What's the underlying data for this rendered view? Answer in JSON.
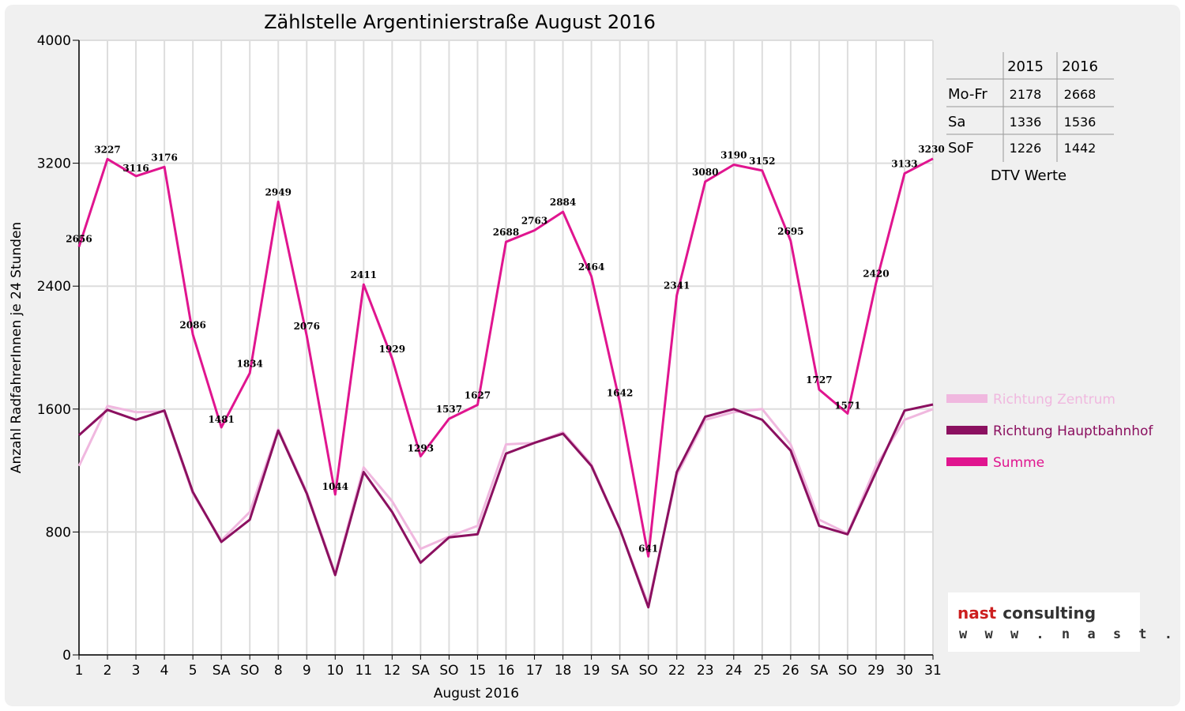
{
  "colors": {
    "zentrum": "#f0b8df",
    "hauptbahnhof": "#8b1060",
    "summe": "#e0158f",
    "weekend_label": "#ff0000",
    "grid": "#dddddd",
    "frame_bg": "#f0f0f0"
  },
  "chart_data": {
    "type": "line",
    "title": "Zählstelle Argentinierstraße August 2016",
    "xlabel": "August 2016",
    "ylabel": "Anzahl RadfahrerInnen je 24 Stunden",
    "ylim": [
      0,
      4000
    ],
    "yticks": [
      "0",
      "800",
      "1600",
      "2400",
      "3200",
      "4000"
    ],
    "grid": true,
    "legend_position": "right",
    "categories": [
      "1",
      "2",
      "3",
      "4",
      "5",
      "SA",
      "SO",
      "8",
      "9",
      "10",
      "11",
      "12",
      "SA",
      "SO",
      "15",
      "16",
      "17",
      "18",
      "19",
      "SA",
      "SO",
      "22",
      "23",
      "24",
      "25",
      "26",
      "SA",
      "SO",
      "29",
      "30",
      "31"
    ],
    "red_categories": [
      6,
      13,
      14,
      20,
      27
    ],
    "series": [
      {
        "name": "Richtung Zentrum",
        "color_key": "zentrum",
        "values": [
          1230,
          1620,
          1580,
          1585,
          1050,
          745,
          930,
          1470,
          1060,
          530,
          1220,
          1000,
          690,
          770,
          840,
          1370,
          1380,
          1450,
          1240,
          820,
          330,
          1170,
          1530,
          1580,
          1600,
          1370,
          880,
          790,
          1230,
          1530,
          1600
        ]
      },
      {
        "name": "Richtung Hauptbahnhof",
        "color_key": "hauptbahnhof",
        "values": [
          1430,
          1595,
          1530,
          1590,
          1060,
          735,
          880,
          1460,
          1050,
          520,
          1190,
          930,
          600,
          765,
          785,
          1310,
          1380,
          1440,
          1230,
          820,
          310,
          1190,
          1550,
          1600,
          1530,
          1330,
          840,
          785,
          1190,
          1590,
          1630
        ]
      },
      {
        "name": "Summe",
        "color_key": "summe",
        "values": [
          2656,
          3227,
          3116,
          3176,
          2086,
          1481,
          1834,
          2949,
          2076,
          1044,
          2411,
          1929,
          1293,
          1537,
          1627,
          2688,
          2763,
          2884,
          2464,
          1642,
          641,
          2341,
          3080,
          3190,
          3152,
          2695,
          1727,
          1571,
          2420,
          3133,
          3230
        ]
      }
    ],
    "data_labels": [
      "2656",
      "3227",
      "3116",
      "3176",
      "2086",
      "1481",
      "1834",
      "2949",
      "2076",
      "1044",
      "2411",
      "1929",
      "1293",
      "1537",
      "1627",
      "2688",
      "2763",
      "2884",
      "2464",
      "1642",
      "641",
      "2341",
      "3080",
      "3190",
      "3152",
      "2695",
      "1727",
      "1571",
      "2420",
      "3133",
      "3230"
    ]
  },
  "dtv_table": {
    "caption": "DTV Werte",
    "columns": [
      "",
      "2015",
      "2016"
    ],
    "rows": [
      {
        "label": "Mo-Fr",
        "v2015": "2178",
        "v2016": "2668"
      },
      {
        "label": "Sa",
        "v2015": "1336",
        "v2016": "1536"
      },
      {
        "label": "SoF",
        "v2015": "1226",
        "v2016": "1442"
      }
    ]
  },
  "logo": {
    "word1": "nast",
    "word2": "consulting",
    "url": "w w w . n a s t . a t"
  }
}
